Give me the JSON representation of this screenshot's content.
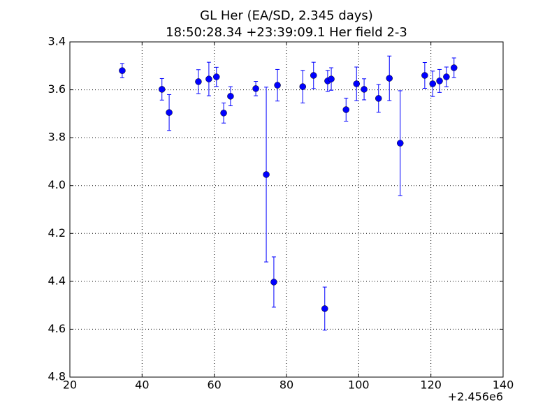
{
  "chart_data": {
    "type": "errorbar",
    "title": "GL Her (EA/SD, 2.345 days)",
    "subtitle": "18:50:28.34 +23:39:09.1 Her field 2-3",
    "x_offset_label": "+2.456e6",
    "x": [
      34.5,
      45.5,
      47.5,
      55.6,
      58.5,
      60.6,
      62.6,
      64.5,
      71.5,
      74.4,
      76.5,
      77.5,
      84.5,
      87.5,
      90.6,
      91.4,
      92.4,
      96.5,
      99.4,
      101.5,
      105.5,
      108.5,
      111.5,
      118.3,
      120.5,
      122.4,
      124.3,
      126.4
    ],
    "values": [
      3.52,
      3.598,
      3.695,
      3.566,
      3.555,
      3.546,
      3.697,
      3.627,
      3.595,
      3.954,
      4.403,
      3.581,
      3.587,
      3.54,
      4.514,
      3.563,
      3.555,
      3.683,
      3.575,
      3.598,
      3.636,
      3.552,
      3.823,
      3.54,
      3.575,
      3.563,
      3.546,
      3.508
    ],
    "errors": [
      0.03,
      0.045,
      0.075,
      0.05,
      0.07,
      0.04,
      0.042,
      0.04,
      0.03,
      0.365,
      0.105,
      0.066,
      0.068,
      0.055,
      0.09,
      0.044,
      0.047,
      0.048,
      0.07,
      0.044,
      0.058,
      0.093,
      0.219,
      0.054,
      0.053,
      0.048,
      0.041,
      0.041
    ],
    "color": "#0000ff",
    "xlim": [
      20,
      140
    ],
    "xticks": [
      20,
      40,
      60,
      80,
      100,
      120,
      140
    ],
    "ylim": [
      3.4,
      4.8
    ],
    "y_inverted": true,
    "yticks": [
      3.4,
      3.6,
      3.8,
      {
        "value": 4,
        "label": "4.0"
      },
      4.2,
      4.4,
      4.6,
      4.8
    ],
    "grid": true
  }
}
